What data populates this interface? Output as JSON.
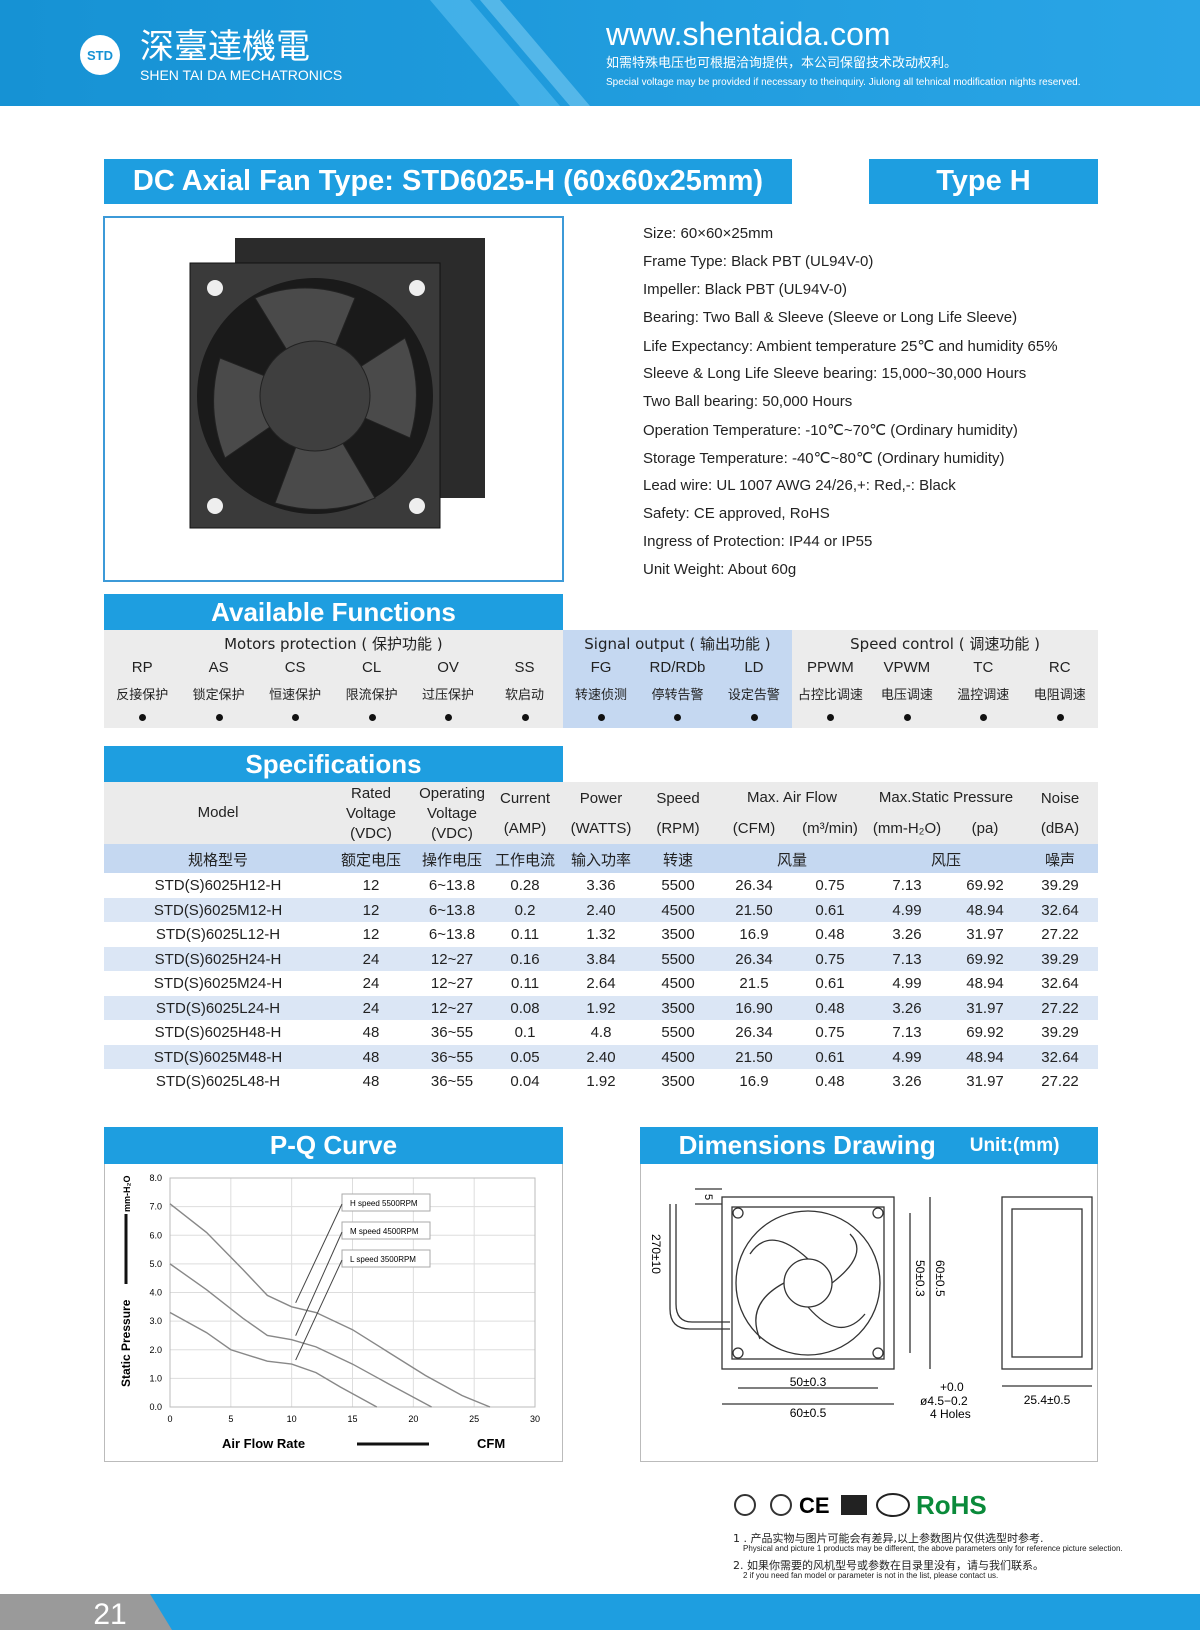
{
  "header": {
    "logo": "STD",
    "name_cn": "深臺達機電",
    "name_en": "SHEN TAI DA MECHATRONICS",
    "url": "www.shentaida.com",
    "note_cn": "如需特殊电压也可根据洽询提供，本公司保留技术改动权利。",
    "note_en": "Special voltage may be provided if necessary to theinquiry. Jiulong all tehnical modification nights reserved."
  },
  "title": "DC Axial Fan  Type: STD6025-H (60x60x25mm)",
  "type_badge": "Type  H",
  "features": [
    "Size: 60×60×25mm",
    "Frame Type: Black PBT (UL94V-0)",
    "Impeller: Black PBT (UL94V-0)",
    "Bearing: Two Ball & Sleeve (Sleeve or Long Life Sleeve)",
    "Life Expectancy: Ambient temperature 25℃ and humidity 65%",
    "Sleeve & Long Life Sleeve bearing: 15,000~30,000 Hours",
    "Two Ball bearing: 50,000 Hours",
    "Operation Temperature: -10℃~70℃ (Ordinary humidity)",
    "Storage Temperature: -40℃~80℃ (Ordinary humidity)",
    "Lead wire: UL 1007 AWG 24/26,+: Red,-: Black",
    "Safety: CE approved, RoHS",
    "Ingress of Protection: IP44 or IP55",
    "Unit Weight: About 60g"
  ],
  "functions": {
    "title": "Available Functions",
    "groups": [
      {
        "label": "Motors protection ( 保护功能 )",
        "items": [
          {
            "code": "RP",
            "cn": "反接保护"
          },
          {
            "code": "AS",
            "cn": "锁定保护"
          },
          {
            "code": "CS",
            "cn": "恒速保护"
          },
          {
            "code": "CL",
            "cn": "限流保护"
          },
          {
            "code": "OV",
            "cn": "过压保护"
          },
          {
            "code": "SS",
            "cn": "软启动"
          }
        ]
      },
      {
        "label": "Signal output ( 输出功能 )",
        "items": [
          {
            "code": "FG",
            "cn": "转速侦测"
          },
          {
            "code": "RD/RDb",
            "cn": "停转告警"
          },
          {
            "code": "LD",
            "cn": "设定告警"
          }
        ]
      },
      {
        "label": "Speed control ( 调速功能 )",
        "items": [
          {
            "code": "PPWM",
            "cn": "占控比调速"
          },
          {
            "code": "VPWM",
            "cn": "电压调速"
          },
          {
            "code": "TC",
            "cn": "温控调速"
          },
          {
            "code": "RC",
            "cn": "电阻调速"
          }
        ]
      }
    ]
  },
  "specifications": {
    "title": "Specifications",
    "header": {
      "model": "Model",
      "rated": [
        "Rated",
        "Voltage",
        "(VDC)"
      ],
      "operating": [
        "Operating",
        "Voltage",
        "(VDC)"
      ],
      "current": [
        "Current",
        "(AMP)"
      ],
      "power": [
        "Power",
        "(WATTS)"
      ],
      "speed": [
        "Speed",
        "(RPM)"
      ],
      "airflow": [
        "Max. Air Flow",
        "(CFM)",
        "(m³/min)"
      ],
      "pressure": [
        "Max.Static Pressure",
        "(mm-H₂O)",
        "(pa)"
      ],
      "noise": [
        "Noise",
        "(dBA)"
      ]
    },
    "header_cn": [
      "规格型号",
      "额定电压",
      "操作电压",
      "工作电流",
      "输入功率",
      "转速",
      "风量",
      "风压",
      "噪声"
    ],
    "rows": [
      [
        "STD(S)6025H12-H",
        "12",
        "6~13.8",
        "0.28",
        "3.36",
        "5500",
        "26.34",
        "0.75",
        "7.13",
        "69.92",
        "39.29"
      ],
      [
        "STD(S)6025M12-H",
        "12",
        "6~13.8",
        "0.2",
        "2.40",
        "4500",
        "21.50",
        "0.61",
        "4.99",
        "48.94",
        "32.64"
      ],
      [
        "STD(S)6025L12-H",
        "12",
        "6~13.8",
        "0.11",
        "1.32",
        "3500",
        "16.9",
        "0.48",
        "3.26",
        "31.97",
        "27.22"
      ],
      [
        "STD(S)6025H24-H",
        "24",
        "12~27",
        "0.16",
        "3.84",
        "5500",
        "26.34",
        "0.75",
        "7.13",
        "69.92",
        "39.29"
      ],
      [
        "STD(S)6025M24-H",
        "24",
        "12~27",
        "0.11",
        "2.64",
        "4500",
        "21.5",
        "0.61",
        "4.99",
        "48.94",
        "32.64"
      ],
      [
        "STD(S)6025L24-H",
        "24",
        "12~27",
        "0.08",
        "1.92",
        "3500",
        "16.90",
        "0.48",
        "3.26",
        "31.97",
        "27.22"
      ],
      [
        "STD(S)6025H48-H",
        "48",
        "36~55",
        "0.1",
        "4.8",
        "5500",
        "26.34",
        "0.75",
        "7.13",
        "69.92",
        "39.29"
      ],
      [
        "STD(S)6025M48-H",
        "48",
        "36~55",
        "0.05",
        "2.40",
        "4500",
        "21.50",
        "0.61",
        "4.99",
        "48.94",
        "32.64"
      ],
      [
        "STD(S)6025L48-H",
        "48",
        "36~55",
        "0.04",
        "1.92",
        "3500",
        "16.9",
        "0.48",
        "3.26",
        "31.97",
        "27.22"
      ]
    ]
  },
  "pq_curve": {
    "title": "P-Q Curve",
    "y_label": "Static Pressure",
    "y_unit": "mm-H₂O",
    "x_label": "Air  Flow  Rate",
    "x_unit": "CFM",
    "xlim": [
      0,
      30
    ],
    "ylim": [
      0,
      8
    ],
    "xticks": [
      0,
      5,
      10,
      15,
      20,
      25,
      30
    ],
    "yticks": [
      {
        "value": 0,
        "label": "0.0"
      },
      {
        "value": 1,
        "label": "1.0"
      },
      {
        "value": 2,
        "label": "2.0"
      },
      {
        "value": 3,
        "label": "3.0"
      },
      {
        "value": 4,
        "label": "4.0"
      },
      {
        "value": 5,
        "label": "5.0"
      },
      {
        "value": 6,
        "label": "6.0"
      },
      {
        "value": 7,
        "label": "7.0"
      },
      {
        "value": 8,
        "label": "8.0"
      }
    ],
    "series": [
      {
        "name": "H speed 5500RPM",
        "x": [
          0,
          3,
          6,
          8,
          10,
          12,
          15,
          18,
          21,
          24,
          26.3
        ],
        "values": [
          7.1,
          6.1,
          4.8,
          3.9,
          3.5,
          3.3,
          2.7,
          1.9,
          1.1,
          0.4,
          0
        ]
      },
      {
        "name": "M speed 4500RPM",
        "x": [
          0,
          3,
          6,
          8,
          10,
          12,
          15,
          18,
          21.5
        ],
        "values": [
          5.0,
          4.1,
          3.1,
          2.5,
          2.35,
          2.1,
          1.5,
          0.8,
          0
        ]
      },
      {
        "name": "L speed 3500RPM",
        "x": [
          0,
          3,
          5,
          8,
          10,
          12,
          14,
          17
        ],
        "values": [
          3.3,
          2.6,
          2.0,
          1.6,
          1.5,
          1.2,
          0.7,
          0
        ]
      }
    ]
  },
  "dimensions": {
    "title": "Dimensions Drawing",
    "unit": "Unit:(mm)",
    "labels": [
      "5",
      "270±10",
      "50±0.3",
      "60±0.5",
      "50±0.3",
      "60±0.5",
      "+0.0",
      "ø4.5−0.2",
      "4 Holes",
      "25.4±0.5"
    ]
  },
  "certifications": [
    "CE",
    "RoHS"
  ],
  "footnotes": [
    "1 . 产品实物与图片可能会有差异,以上参数图片仅供选型时参考.",
    "Physical and picture 1 products may be different, the above parameters only for reference picture selection.",
    "2. 如果你需要的风机型号或参数在目录里没有，请与我们联系。",
    "2 if you need fan model or parameter is not in the list, please contact us."
  ],
  "page_number": "21"
}
